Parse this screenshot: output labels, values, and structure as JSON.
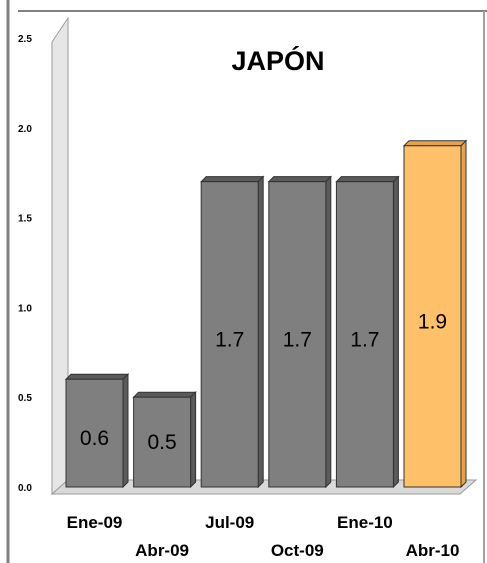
{
  "chart_data": {
    "type": "bar",
    "title": "JAPÓN",
    "categories": [
      "Ene-09",
      "Abr-09",
      "Jul-09",
      "Oct-09",
      "Ene-10",
      "Abr-10"
    ],
    "values": [
      0.6,
      0.5,
      1.7,
      1.7,
      1.7,
      1.9
    ],
    "data_labels": [
      "0.6",
      "0.5",
      "1.7",
      "1.7",
      "1.7",
      "1.9"
    ],
    "yticks": [
      "0.0",
      "0.5",
      "1.0",
      "1.5",
      "2.0",
      "2.5"
    ],
    "ylim": [
      0,
      2.5
    ],
    "xlabel": "",
    "ylabel": "",
    "grid": false,
    "legend": "none",
    "colors": {
      "bar": "#7f7f7f",
      "bar_top": "#5a5a5a",
      "highlight": "#ffc06a",
      "highlight_top": "#e8a24a",
      "wall": "#e6e6e6",
      "floor": "#d9d9d9",
      "frame": "#808080"
    }
  }
}
